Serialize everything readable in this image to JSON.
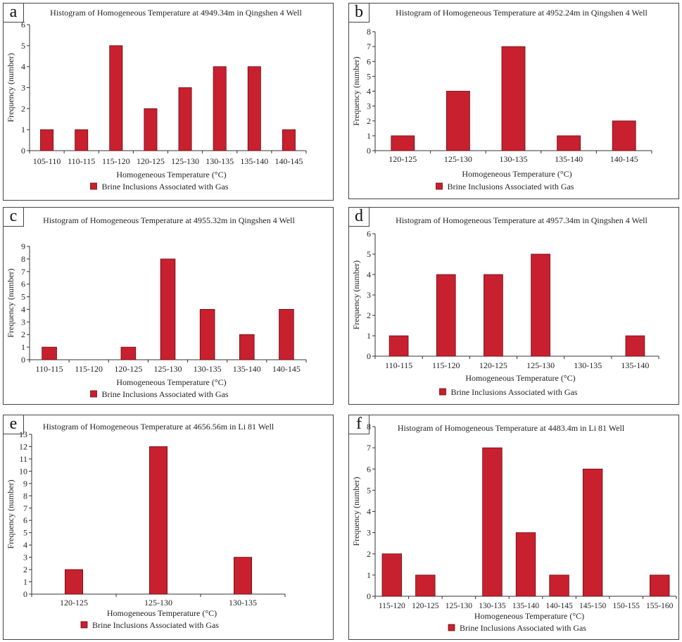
{
  "colors": {
    "bar": "#c8202e",
    "bar_stroke": "#6a0a10",
    "axis": "#333333",
    "text": "#222222"
  },
  "panels": [
    {
      "letter": "a"
    },
    {
      "letter": "b"
    },
    {
      "letter": "c"
    },
    {
      "letter": "d"
    },
    {
      "letter": "e"
    },
    {
      "letter": "f"
    }
  ],
  "chart_data": [
    {
      "type": "bar",
      "title": "Histogram of Homogeneous Temperature at 4949.34m in Qingshen 4 Well",
      "xlabel": "Homogeneous Temperature (°C)",
      "ylabel": "Frequency (number)",
      "legend": "Brine Inclusions Associated with Gas",
      "categories": [
        "105-110",
        "110-115",
        "115-120",
        "120-125",
        "125-130",
        "130-135",
        "135-140",
        "140-145"
      ],
      "values": [
        1,
        1,
        5,
        2,
        3,
        4,
        4,
        1
      ],
      "ylim": [
        0,
        6
      ],
      "yticks": [
        "0",
        "1",
        "2",
        "3",
        "4",
        "5",
        "6"
      ]
    },
    {
      "type": "bar",
      "title": "Histogram of Homogeneous Temperature at 4952.24m in Qingshen 4 Well",
      "xlabel": "Homogeneous Temperature (°C)",
      "ylabel": "Frequency (number)",
      "legend": "Brine Inclusions Associated with Gas",
      "categories": [
        "120-125",
        "125-130",
        "130-135",
        "135-140",
        "140-145"
      ],
      "values": [
        1,
        4,
        7,
        1,
        2
      ],
      "ylim": [
        0,
        8
      ],
      "yticks": [
        "0",
        "1",
        "2",
        "3",
        "4",
        "5",
        "6",
        "7",
        "8"
      ]
    },
    {
      "type": "bar",
      "title": "Histogram of Homogeneous Temperature at 4955.32m in Qingshen 4 Well",
      "xlabel": "Homogeneous Temperature (°C)",
      "ylabel": "Frequency (number)",
      "legend": "Brine Inclusions Associated with Gas",
      "categories": [
        "110-115",
        "115-120",
        "120-125",
        "125-130",
        "130-135",
        "135-140",
        "140-145"
      ],
      "values": [
        1,
        0,
        1,
        8,
        4,
        2,
        4
      ],
      "ylim": [
        0,
        9
      ],
      "yticks": [
        "0",
        "1",
        "2",
        "3",
        "4",
        "5",
        "6",
        "7",
        "8",
        "9"
      ]
    },
    {
      "type": "bar",
      "title": "Histogram of Homogeneous Temperature at 4957.34m in Qingshen 4 Well",
      "xlabel": "Homogeneous Temperature (°C)",
      "ylabel": "Frequency (number)",
      "legend": "Brine Inclusions Associated with Gas",
      "categories": [
        "110-115",
        "115-120",
        "120-125",
        "125-130",
        "130-135",
        "135-140"
      ],
      "values": [
        1,
        4,
        4,
        5,
        0,
        1
      ],
      "ylim": [
        0,
        6
      ],
      "yticks": [
        "0",
        "1",
        "2",
        "3",
        "4",
        "5",
        "6"
      ]
    },
    {
      "type": "bar",
      "title": "Histogram of Homogeneous Temperature at 4656.56m in Li 81 Well",
      "xlabel": "Homogeneous Temperature (°C)",
      "ylabel": "Frequency (number)",
      "legend": "Brine Inclusions Associated with Gas",
      "categories": [
        "120-125",
        "125-130",
        "130-135"
      ],
      "values": [
        2,
        12,
        3
      ],
      "ylim": [
        0,
        13
      ],
      "yticks": [
        "0",
        "1",
        "2",
        "3",
        "4",
        "5",
        "6",
        "7",
        "8",
        "9",
        "10",
        "11",
        "12",
        "13"
      ]
    },
    {
      "type": "bar",
      "title": "Histogram of Homogeneous Temperature at 4483.4m in Li 81 Well",
      "xlabel": "Homogeneous Temperature (°C)",
      "ylabel": "Frequency (number)",
      "legend": "Brine Inclusions Associated with Gas",
      "categories": [
        "115-120",
        "120-125",
        "125-130",
        "130-135",
        "135-140",
        "140-145",
        "145-150",
        "150-155",
        "155-160"
      ],
      "values": [
        2,
        1,
        0,
        7,
        3,
        1,
        6,
        0,
        1
      ],
      "ylim": [
        0,
        8
      ],
      "yticks": [
        "0",
        "1",
        "2",
        "3",
        "4",
        "5",
        "6",
        "7",
        "8"
      ]
    }
  ]
}
